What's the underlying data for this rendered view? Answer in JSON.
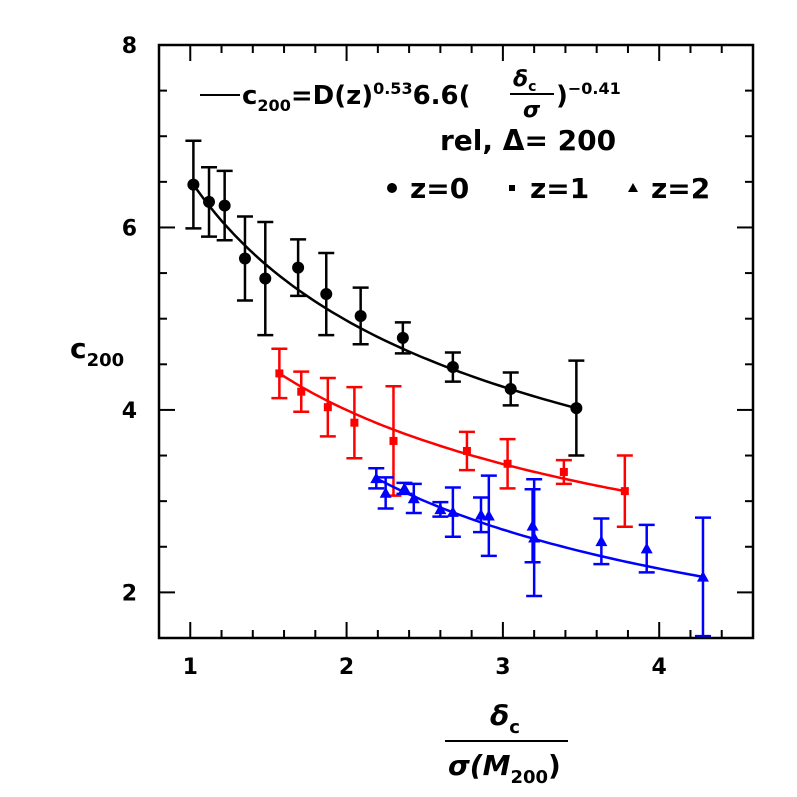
{
  "chart_data": {
    "type": "scatter",
    "xlabel": {
      "numerator": "δ",
      "numerator_sub": "c",
      "denominator": "σ(M",
      "denominator_sub": "200",
      "denominator_end": ")"
    },
    "ylabel": {
      "main": "c",
      "sub": "200"
    },
    "xlim": [
      0.8,
      4.6
    ],
    "ylim": [
      1.5,
      8
    ],
    "xticks": [
      1,
      2,
      3,
      4
    ],
    "yticks": [
      2,
      4,
      6,
      8
    ],
    "grid": false,
    "legend_placement": "top-right",
    "fit": {
      "c": "c",
      "c_sub": "200",
      "eq": "=D(z)",
      "exp1": "0.53",
      "coef": "6.6(",
      "frac_num": "δ",
      "frac_num_sub": "c",
      "frac_den": "σ",
      "close": ")",
      "exp2": "−0.41"
    },
    "annotation": "rel, Δ= 200",
    "series": [
      {
        "name": "z=0",
        "marker": "circle",
        "color": "#000000",
        "x": [
          1.02,
          1.12,
          1.22,
          1.35,
          1.48,
          1.69,
          1.87,
          2.09,
          2.36,
          2.68,
          3.05,
          3.47
        ],
        "y": [
          6.47,
          6.28,
          6.24,
          5.66,
          5.44,
          5.56,
          5.27,
          5.03,
          4.79,
          4.47,
          4.23,
          4.02
        ],
        "yerr": [
          0.48,
          0.38,
          0.38,
          0.46,
          0.62,
          0.31,
          0.45,
          0.31,
          0.17,
          0.16,
          0.18,
          0.52
        ],
        "fit_x": [
          1.0,
          3.47
        ]
      },
      {
        "name": "z=1",
        "marker": "square",
        "color": "#ff0000",
        "x": [
          1.57,
          1.71,
          1.88,
          2.05,
          2.3,
          2.77,
          3.03,
          3.39,
          3.78
        ],
        "y": [
          4.4,
          4.2,
          4.03,
          3.86,
          3.66,
          3.55,
          3.41,
          3.32,
          3.11
        ],
        "yerr": [
          0.27,
          0.22,
          0.32,
          0.39,
          0.6,
          0.21,
          0.27,
          0.13,
          0.39
        ],
        "fit_x": [
          1.57,
          3.78
        ]
      },
      {
        "name": "z=2",
        "marker": "triangle",
        "color": "#0000ff",
        "x": [
          2.19,
          2.25,
          2.37,
          2.43,
          2.6,
          2.68,
          2.86,
          2.91,
          3.19,
          3.2,
          3.63,
          3.92,
          4.28
        ],
        "y": [
          3.25,
          3.09,
          3.14,
          3.03,
          2.91,
          2.88,
          2.85,
          2.84,
          2.73,
          2.6,
          2.56,
          2.48,
          2.17
        ],
        "yerr": [
          0.11,
          0.17,
          0.06,
          0.16,
          0.08,
          0.27,
          0.19,
          0.44,
          0.4,
          0.64,
          0.25,
          0.26,
          0.65
        ],
        "fit_x": [
          2.2,
          4.28
        ]
      }
    ]
  }
}
